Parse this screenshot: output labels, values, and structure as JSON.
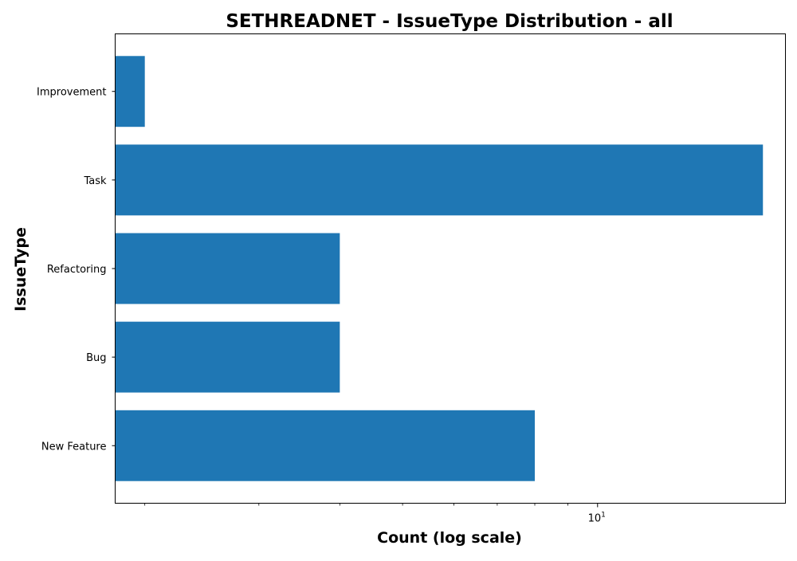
{
  "chart_data": {
    "type": "bar",
    "orientation": "horizontal",
    "title": "SETHREADNET - IssueType Distribution - all",
    "xlabel": "Count (log scale)",
    "ylabel": "IssueType",
    "x_scale": "log",
    "xlim": [
      1.8,
      19.5
    ],
    "x_major_ticks": [
      {
        "value": 10,
        "label_base": "10",
        "label_exp": "1"
      }
    ],
    "x_minor_ticks": [
      2,
      3,
      4,
      5,
      6,
      7,
      8,
      9
    ],
    "categories": [
      "Improvement",
      "Task",
      "Refactoring",
      "Bug",
      "New Feature"
    ],
    "values": [
      2,
      18,
      4,
      4,
      8
    ],
    "bar_color": "#1f77b4",
    "legend": "none",
    "grid": false
  }
}
